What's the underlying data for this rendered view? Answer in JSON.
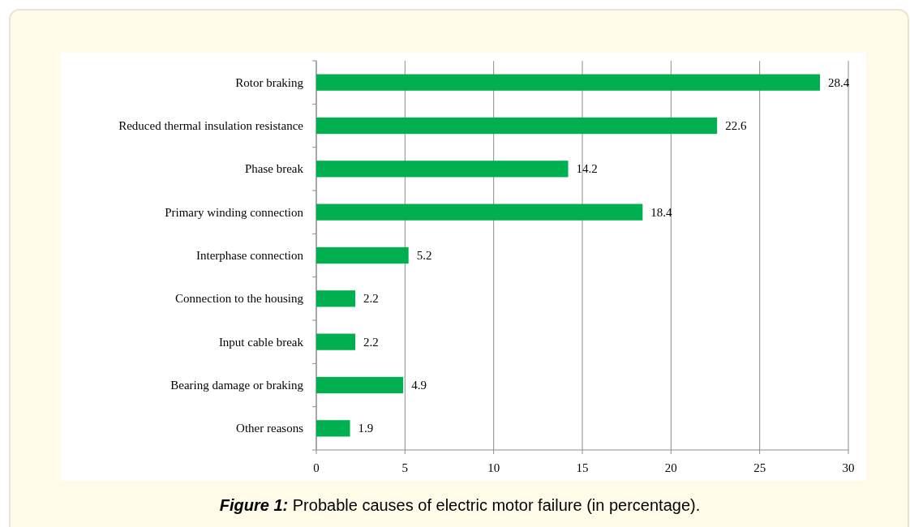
{
  "chart_data": {
    "type": "bar",
    "orientation": "horizontal",
    "title": "Figure 1: Probable causes of electric motor failure (in percentage).",
    "categories": [
      "Rotor braking",
      "Reduced thermal insulation resistance",
      "Phase break",
      "Primary winding connection",
      "Interphase connection",
      "Connection to the housing",
      "Input cable break",
      "Bearing damage or braking",
      "Other reasons"
    ],
    "values": [
      28.4,
      22.6,
      14.2,
      18.4,
      5.2,
      2.2,
      2.2,
      4.9,
      1.9
    ],
    "color": "#00b050",
    "xlim": [
      0,
      30
    ],
    "xticks": [
      0,
      5,
      10,
      15,
      20,
      25,
      30
    ],
    "grid": "x",
    "data_labels": true
  }
}
